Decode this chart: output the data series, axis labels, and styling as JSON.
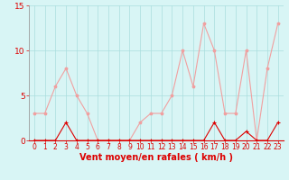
{
  "x": [
    0,
    1,
    2,
    3,
    4,
    5,
    6,
    7,
    8,
    9,
    10,
    11,
    12,
    13,
    14,
    15,
    16,
    17,
    18,
    19,
    20,
    21,
    22,
    23
  ],
  "vent_moyen": [
    0,
    0,
    0,
    2,
    0,
    0,
    0,
    0,
    0,
    0,
    0,
    0,
    0,
    0,
    0,
    0,
    0,
    2,
    0,
    0,
    1,
    0,
    0,
    2
  ],
  "rafales": [
    3,
    3,
    6,
    8,
    5,
    3,
    0,
    0,
    0,
    0,
    2,
    3,
    3,
    5,
    10,
    6,
    13,
    10,
    3,
    3,
    10,
    0,
    8,
    13
  ],
  "xlabel": "Vent moyen/en rafales ( km/h )",
  "ylim": [
    0,
    15
  ],
  "xlim": [
    -0.5,
    23.5
  ],
  "yticks": [
    0,
    5,
    10,
    15
  ],
  "xticks": [
    0,
    1,
    2,
    3,
    4,
    5,
    6,
    7,
    8,
    9,
    10,
    11,
    12,
    13,
    14,
    15,
    16,
    17,
    18,
    19,
    20,
    21,
    22,
    23
  ],
  "color_rafales": "#f0a0a0",
  "color_moyen": "#dd0000",
  "bg_color": "#d8f5f5",
  "grid_color": "#aadddd",
  "tick_color": "#dd0000",
  "label_color": "#dd0000",
  "tick_fontsize": 5.5,
  "xlabel_fontsize": 7,
  "ylabel_fontsize": 7
}
